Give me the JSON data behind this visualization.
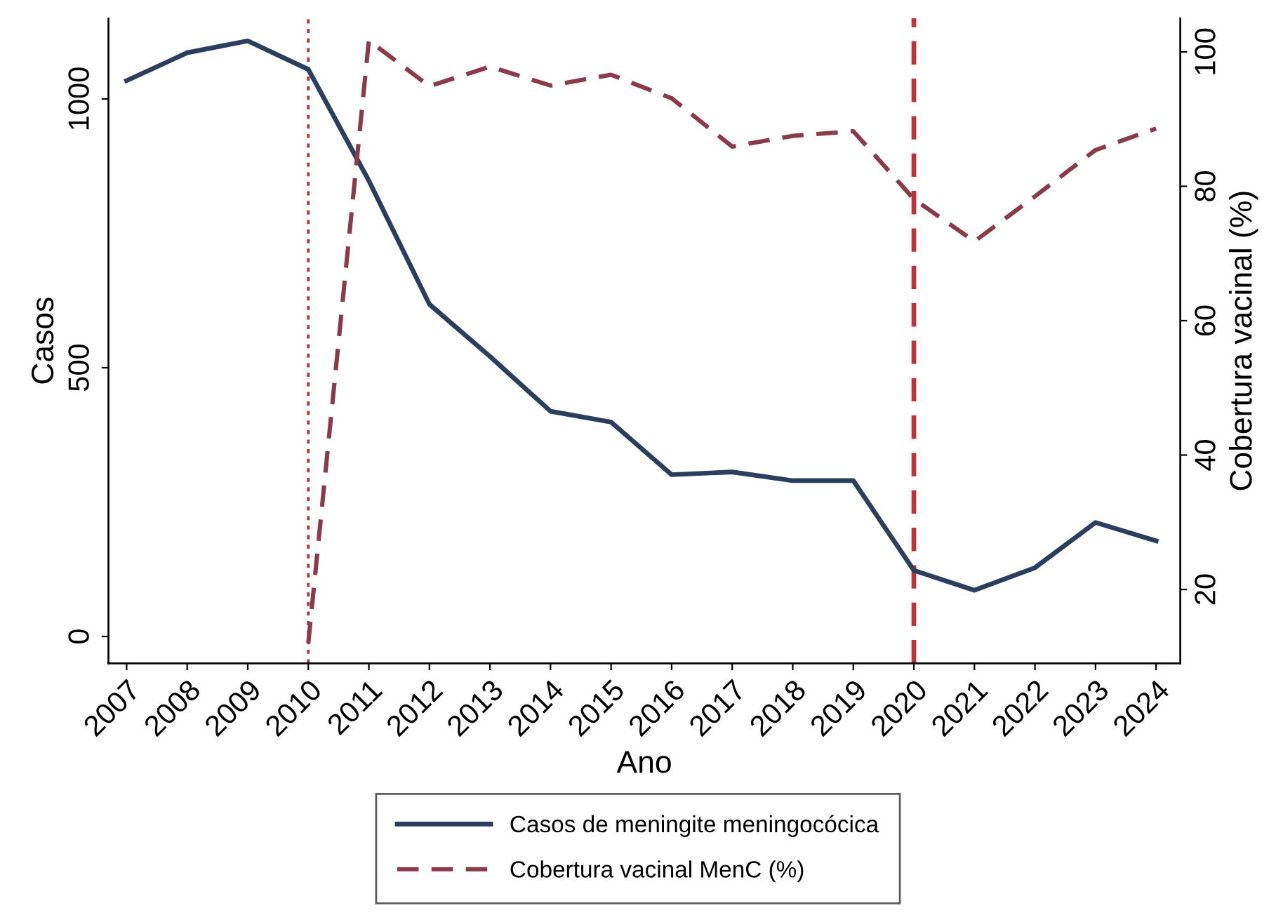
{
  "chart_data": {
    "type": "line",
    "xlabel": "Ano",
    "ylabel": "Casos",
    "y2label": "Cobertura vacinal (%)",
    "x": [
      2007,
      2008,
      2009,
      2010,
      2011,
      2012,
      2013,
      2014,
      2015,
      2016,
      2017,
      2018,
      2019,
      2020,
      2021,
      2022,
      2023,
      2024
    ],
    "xlim": [
      2006.7,
      2024.4
    ],
    "xticks": [
      2007,
      2008,
      2009,
      2010,
      2011,
      2012,
      2013,
      2014,
      2015,
      2016,
      2017,
      2018,
      2019,
      2020,
      2021,
      2022,
      2023,
      2024
    ],
    "ylim": [
      -50,
      1150
    ],
    "yticks": [
      0,
      500,
      1000
    ],
    "y2lim": [
      9,
      105
    ],
    "y2ticks": [
      20,
      40,
      60,
      80,
      100
    ],
    "series": [
      {
        "name": "Casos de meningite meningocócica",
        "color": "#2c3e5e",
        "line_style": "solid",
        "values": [
          1034,
          1086,
          1108,
          1055,
          848,
          618,
          521,
          419,
          399,
          301,
          306,
          290,
          290,
          123,
          86,
          128,
          212,
          178
        ]
      },
      {
        "name": "Cobertura vacinal MenC (%)",
        "color": "#8b3a4a",
        "line_style": "dashed",
        "axis": "y2",
        "x": [
          2010,
          2011,
          2012,
          2013,
          2014,
          2015,
          2016,
          2017,
          2018,
          2019,
          2020,
          2021,
          2022,
          2023,
          2024
        ],
        "values": [
          12,
          101.7,
          94.9,
          97.8,
          95,
          96.6,
          93.1,
          85.9,
          87.5,
          88.2,
          78.1,
          71.8,
          78.5,
          85.4,
          88.6
        ]
      }
    ],
    "ref_lines": [
      {
        "axis": "x",
        "value": 2010,
        "label": null,
        "color": "#b23a3a",
        "line_style": "dotted"
      },
      {
        "axis": "x",
        "value": 2020,
        "label": null,
        "color": "#c0303a",
        "line_style": "dashed"
      }
    ],
    "grid": false,
    "legend": "bottom",
    "marker": "none"
  }
}
